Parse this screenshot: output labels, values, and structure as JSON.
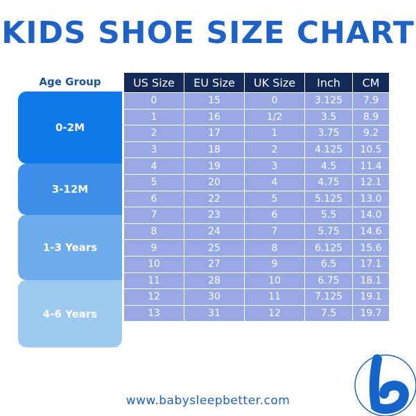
{
  "title": "KIDS SHOE SIZE CHART",
  "age_group_header": "Age Group",
  "age_groups": [
    "0-2M",
    "3-12M",
    "1-3 Years",
    "4-6 Years"
  ],
  "columns": [
    "US Size",
    "EU Size",
    "UK Size",
    "Inch",
    "CM"
  ],
  "rows": [
    [
      "0",
      "15",
      "0",
      "3.125",
      "7.9"
    ],
    [
      "1",
      "16",
      "1/2",
      "3.5",
      "8.9"
    ],
    [
      "2",
      "17",
      "1",
      "3.75",
      "9.2"
    ],
    [
      "3",
      "18",
      "2",
      "4.125",
      "10.5"
    ],
    [
      "4",
      "19",
      "3",
      "4.5",
      "11.4"
    ],
    [
      "5",
      "20",
      "4",
      "4.75",
      "12.1"
    ],
    [
      "6",
      "22",
      "5",
      "5.125",
      "13.0"
    ],
    [
      "7",
      "23",
      "6",
      "5.5",
      "14.0"
    ],
    [
      "8",
      "24",
      "7",
      "5.75",
      "14.6"
    ],
    [
      "9",
      "25",
      "8",
      "6.125",
      "15.6"
    ],
    [
      "10",
      "27",
      "9",
      "6.5",
      "17.1"
    ],
    [
      "11",
      "28",
      "10",
      "6.75",
      "18.1"
    ],
    [
      "12",
      "30",
      "11",
      "7.125",
      "19.1"
    ],
    [
      "13",
      "31",
      "12",
      "7.5",
      "19.7"
    ]
  ],
  "footer": "www.babysleepbetter.com",
  "logo_icon": "letter-b-logo-icon",
  "colors": {
    "title": "#1f62c4",
    "header_bg": "#132a58",
    "cell_bg": "#97a8e3",
    "age_0": "#1178e8",
    "age_1": "#3d8fe9",
    "age_2": "#6eabea",
    "age_3": "#9dc8ef"
  }
}
